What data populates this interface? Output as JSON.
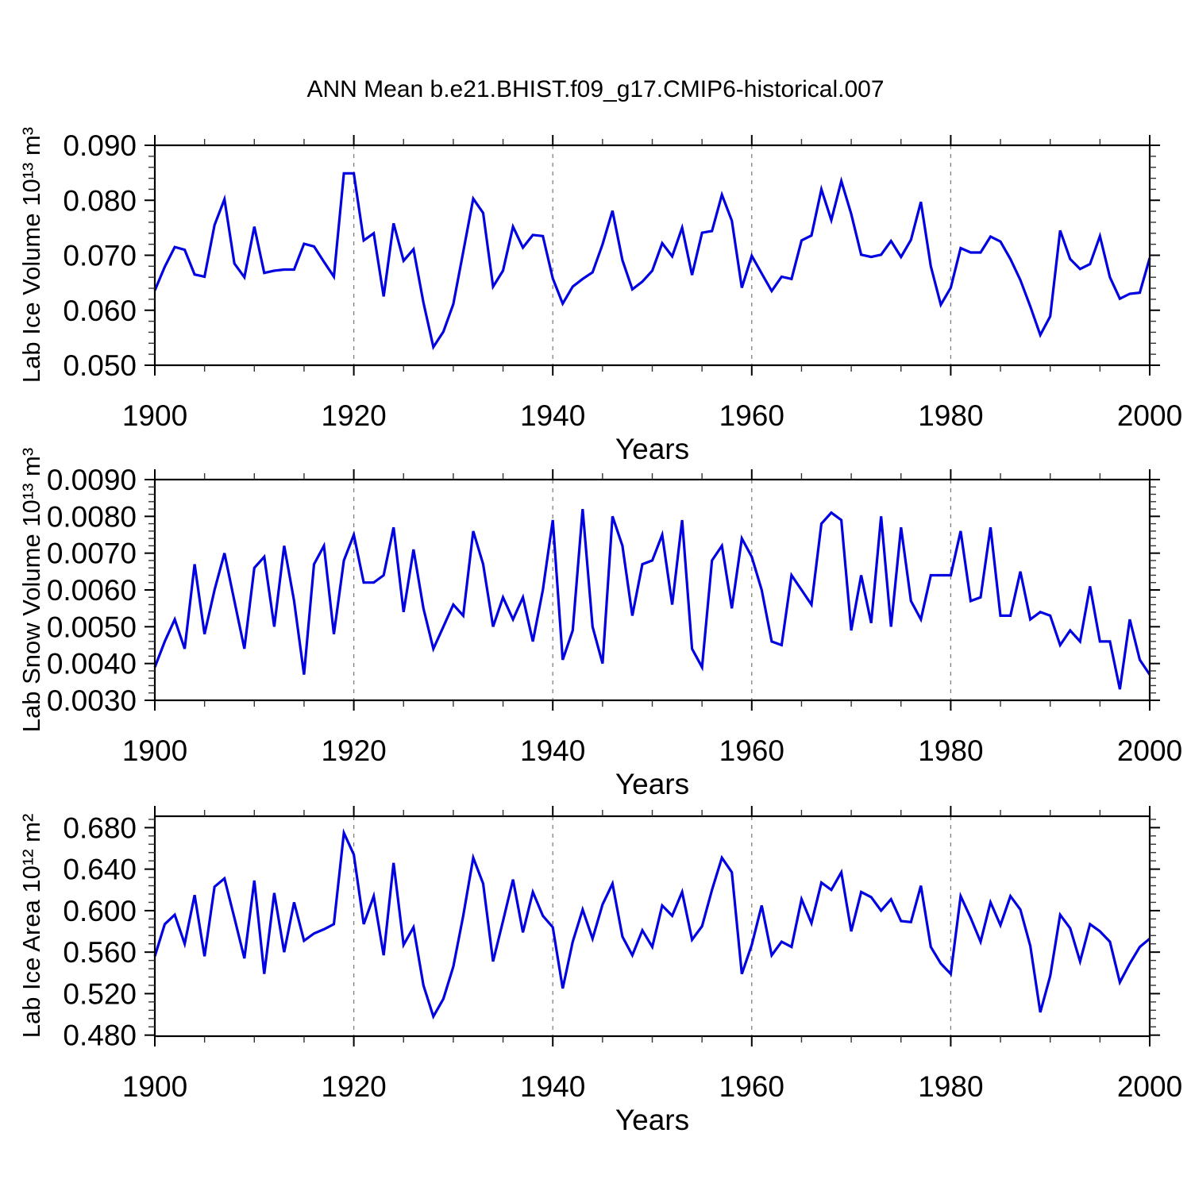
{
  "title": "ANN Mean b.e21.BHIST.f09_g17.CMIP6-historical.007",
  "chart_data": [
    {
      "type": "line",
      "ylabel": "Lab Ice Volume 10¹³ m³",
      "xlabel": "Years",
      "x_start": 1900,
      "x_step": 1,
      "xlim": [
        1900,
        2000
      ],
      "ylim": [
        0.05,
        0.09
      ],
      "yticks": {
        "values": [
          0.05,
          0.06,
          0.07,
          0.08,
          0.09
        ],
        "labels": [
          "0.050",
          "0.060",
          "0.070",
          "0.080",
          "0.090"
        ]
      },
      "y_minor_step": 0.002,
      "xticks": {
        "values": [
          1900,
          1920,
          1940,
          1960,
          1980,
          2000
        ],
        "labels": [
          "1900",
          "1920",
          "1940",
          "1960",
          "1980",
          "2000"
        ]
      },
      "x_minor_step": 5,
      "gridlines_x": [
        1920,
        1940,
        1960,
        1980
      ],
      "grid": true,
      "legend": "none",
      "line_color": "#0000E0",
      "values": [
        0.0636,
        0.0679,
        0.0715,
        0.071,
        0.0665,
        0.0661,
        0.0755,
        0.0802,
        0.0685,
        0.066,
        0.0752,
        0.0668,
        0.0672,
        0.0674,
        0.0674,
        0.0721,
        0.0716,
        0.0688,
        0.0661,
        0.0849,
        0.0849,
        0.0727,
        0.074,
        0.0625,
        0.0758,
        0.069,
        0.0711,
        0.0614,
        0.0533,
        0.0561,
        0.0611,
        0.0706,
        0.0803,
        0.0777,
        0.0643,
        0.0672,
        0.0752,
        0.0714,
        0.0737,
        0.0735,
        0.0658,
        0.0612,
        0.0643,
        0.0657,
        0.0669,
        0.072,
        0.0781,
        0.0691,
        0.0638,
        0.0652,
        0.0672,
        0.0722,
        0.0698,
        0.075,
        0.0664,
        0.0741,
        0.0744,
        0.081,
        0.0763,
        0.0641,
        0.0699,
        0.0667,
        0.0635,
        0.0661,
        0.0657,
        0.0727,
        0.0736,
        0.082,
        0.0764,
        0.0835,
        0.0775,
        0.0701,
        0.0697,
        0.0701,
        0.0726,
        0.0697,
        0.0728,
        0.0797,
        0.068,
        0.061,
        0.0641,
        0.0713,
        0.0705,
        0.0705,
        0.0734,
        0.0725,
        0.0693,
        0.0655,
        0.0607,
        0.0555,
        0.0589,
        0.0745,
        0.0693,
        0.0675,
        0.0684,
        0.0735,
        0.066,
        0.0621,
        0.063,
        0.0632,
        0.0695
      ]
    },
    {
      "type": "line",
      "ylabel": "Lab Snow Volume 10¹³ m³",
      "xlabel": "Years",
      "x_start": 1900,
      "x_step": 1,
      "xlim": [
        1900,
        2000
      ],
      "ylim": [
        0.003,
        0.009
      ],
      "yticks": {
        "values": [
          0.003,
          0.004,
          0.005,
          0.006,
          0.007,
          0.008,
          0.009
        ],
        "labels": [
          "0.0030",
          "0.0040",
          "0.0050",
          "0.0060",
          "0.0070",
          "0.0080",
          "0.0090"
        ]
      },
      "y_minor_step": 0.0002,
      "xticks": {
        "values": [
          1900,
          1920,
          1940,
          1960,
          1980,
          2000
        ],
        "labels": [
          "1900",
          "1920",
          "1940",
          "1960",
          "1980",
          "2000"
        ]
      },
      "x_minor_step": 5,
      "gridlines_x": [
        1920,
        1940,
        1960,
        1980
      ],
      "grid": true,
      "legend": "none",
      "line_color": "#0000E0",
      "values": [
        0.0039,
        0.0046,
        0.0052,
        0.0044,
        0.0067,
        0.0048,
        0.006,
        0.007,
        0.0057,
        0.0044,
        0.0066,
        0.0069,
        0.005,
        0.0072,
        0.0057,
        0.0037,
        0.0067,
        0.0072,
        0.0048,
        0.0068,
        0.0075,
        0.0062,
        0.0062,
        0.0064,
        0.0077,
        0.0054,
        0.0071,
        0.0055,
        0.0044,
        0.005,
        0.0056,
        0.0053,
        0.0076,
        0.0067,
        0.005,
        0.0058,
        0.0052,
        0.0058,
        0.0046,
        0.006,
        0.0079,
        0.0041,
        0.0049,
        0.0082,
        0.005,
        0.004,
        0.008,
        0.0072,
        0.0053,
        0.0067,
        0.0068,
        0.0075,
        0.0056,
        0.0079,
        0.0044,
        0.0039,
        0.0068,
        0.0072,
        0.0055,
        0.0074,
        0.0069,
        0.006,
        0.0046,
        0.0045,
        0.0064,
        0.006,
        0.0056,
        0.0078,
        0.0081,
        0.0079,
        0.0049,
        0.0064,
        0.0051,
        0.008,
        0.005,
        0.0077,
        0.0057,
        0.0052,
        0.0064,
        0.0064,
        0.0064,
        0.0076,
        0.0057,
        0.0058,
        0.0077,
        0.0053,
        0.0053,
        0.0065,
        0.0052,
        0.0054,
        0.0053,
        0.0045,
        0.0049,
        0.0046,
        0.0061,
        0.0046,
        0.0046,
        0.0033,
        0.0052,
        0.0041,
        0.0037
      ]
    },
    {
      "type": "line",
      "ylabel": "Lab Ice Area 10¹² m²",
      "xlabel": "Years",
      "x_start": 1900,
      "x_step": 1,
      "xlim": [
        1900,
        2000
      ],
      "ylim": [
        0.479,
        0.691
      ],
      "yticks": {
        "values": [
          0.48,
          0.52,
          0.56,
          0.6,
          0.64,
          0.68
        ],
        "labels": [
          "0.480",
          "0.520",
          "0.560",
          "0.600",
          "0.640",
          "0.680"
        ]
      },
      "y_minor_step": 0.008,
      "xticks": {
        "values": [
          1900,
          1920,
          1940,
          1960,
          1980,
          2000
        ],
        "labels": [
          "1900",
          "1920",
          "1940",
          "1960",
          "1980",
          "2000"
        ]
      },
      "x_minor_step": 5,
      "gridlines_x": [
        1920,
        1940,
        1960,
        1980
      ],
      "grid": true,
      "legend": "none",
      "line_color": "#0000E0",
      "values": [
        0.556,
        0.587,
        0.596,
        0.568,
        0.615,
        0.556,
        0.623,
        0.631,
        0.593,
        0.554,
        0.629,
        0.539,
        0.617,
        0.56,
        0.608,
        0.571,
        0.578,
        0.582,
        0.587,
        0.675,
        0.654,
        0.587,
        0.614,
        0.557,
        0.646,
        0.567,
        0.584,
        0.528,
        0.498,
        0.515,
        0.546,
        0.595,
        0.651,
        0.626,
        0.551,
        0.59,
        0.63,
        0.579,
        0.618,
        0.595,
        0.584,
        0.525,
        0.57,
        0.601,
        0.573,
        0.606,
        0.626,
        0.575,
        0.557,
        0.581,
        0.565,
        0.605,
        0.595,
        0.618,
        0.572,
        0.585,
        0.62,
        0.651,
        0.637,
        0.539,
        0.567,
        0.605,
        0.557,
        0.57,
        0.565,
        0.611,
        0.588,
        0.627,
        0.62,
        0.637,
        0.58,
        0.618,
        0.613,
        0.6,
        0.611,
        0.59,
        0.589,
        0.624,
        0.565,
        0.549,
        0.539,
        0.614,
        0.593,
        0.57,
        0.608,
        0.586,
        0.614,
        0.601,
        0.566,
        0.502,
        0.537,
        0.596,
        0.583,
        0.551,
        0.587,
        0.58,
        0.57,
        0.531,
        0.549,
        0.565,
        0.573
      ]
    }
  ]
}
